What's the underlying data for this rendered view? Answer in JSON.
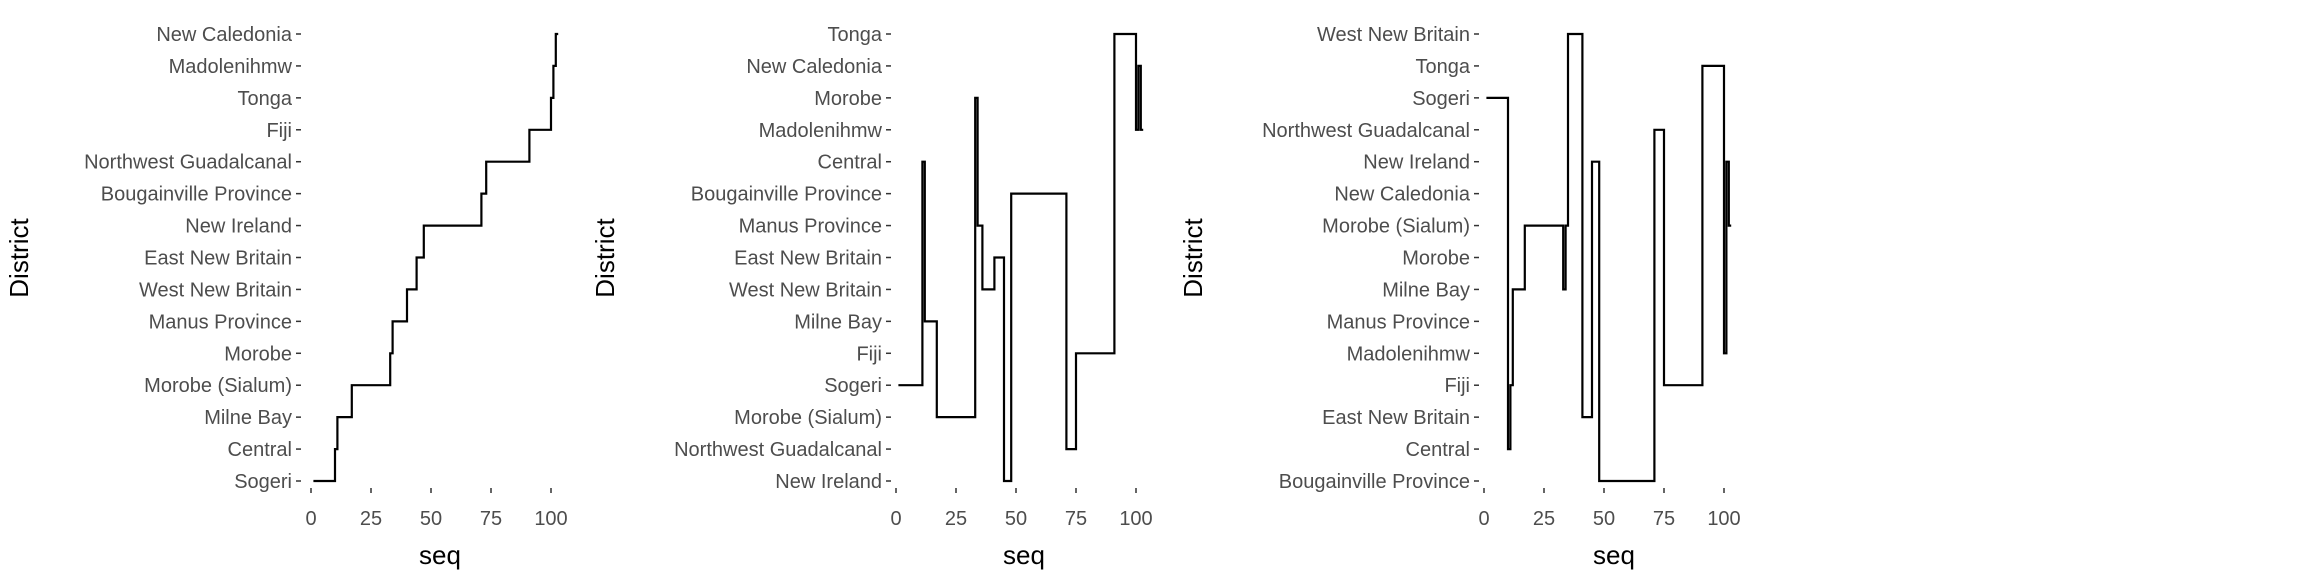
{
  "chart_data": [
    {
      "type": "line",
      "xlabel": "seq",
      "ylabel": "District",
      "xlim": [
        -2,
        106
      ],
      "x_ticks": [
        0,
        50,
        100
      ],
      "x_tick_labels": [
        "0",
        "25",
        "50",
        "75",
        "100"
      ],
      "x_ticks_all": [
        0,
        25,
        50,
        75,
        100
      ],
      "grid": false,
      "y_categories": [
        "Sogeri",
        "Central",
        "Milne Bay",
        "Morobe (Sialum)",
        "Morobe",
        "Manus Province",
        "West New Britain",
        "East New Britain",
        "New Ireland",
        "Bougainville Province",
        "Northwest Guadalcanal",
        "Fiji",
        "Tonga",
        "Madolenihmw",
        "New Caledonia"
      ],
      "series": [
        {
          "x": [
            1,
            10,
            10,
            11,
            11,
            12,
            12,
            13,
            13,
            17,
            17,
            18,
            18,
            33,
            33,
            34,
            34,
            35,
            35,
            36,
            36,
            40,
            40,
            41,
            41,
            44,
            44,
            45,
            45,
            47,
            47,
            48,
            48,
            71,
            71,
            73,
            73,
            75,
            75,
            91,
            91,
            100,
            100,
            101,
            101,
            102,
            102,
            103
          ],
          "y": [
            "Sogeri",
            "Sogeri",
            "Central",
            "Central",
            "Milne Bay",
            "Milne Bay",
            "Milne Bay",
            "Milne Bay",
            "Milne Bay",
            "Milne Bay",
            "Morobe (Sialum)",
            "Morobe (Sialum)",
            "Morobe (Sialum)",
            "Morobe (Sialum)",
            "Morobe",
            "Morobe",
            "Manus Province",
            "Manus Province",
            "Manus Province",
            "Manus Province",
            "Manus Province",
            "Manus Province",
            "West New Britain",
            "West New Britain",
            "West New Britain",
            "West New Britain",
            "East New Britain",
            "East New Britain",
            "East New Britain",
            "East New Britain",
            "New Ireland",
            "New Ireland",
            "New Ireland",
            "New Ireland",
            "Bougainville Province",
            "Bougainville Province",
            "Northwest Guadalcanal",
            "Northwest Guadalcanal",
            "Northwest Guadalcanal",
            "Northwest Guadalcanal",
            "Fiji",
            "Fiji",
            "Tonga",
            "Tonga",
            "Madolenihmw",
            "Madolenihmw",
            "New Caledonia",
            "New Caledonia"
          ]
        }
      ]
    },
    {
      "type": "line",
      "xlabel": "seq",
      "ylabel": "District",
      "xlim": [
        -2,
        106
      ],
      "x_tick_labels": [
        "0",
        "25",
        "50",
        "75",
        "100"
      ],
      "x_ticks_all": [
        0,
        25,
        50,
        75,
        100
      ],
      "grid": false,
      "y_categories": [
        "New Ireland",
        "Northwest Guadalcanal",
        "Morobe (Sialum)",
        "Sogeri",
        "Fiji",
        "Milne Bay",
        "West New Britain",
        "East New Britain",
        "Manus Province",
        "Bougainville Province",
        "Central",
        "Madolenihmw",
        "Morobe",
        "New Caledonia",
        "Tonga"
      ],
      "series": [
        {
          "x": [
            1,
            11,
            11,
            12,
            12,
            13,
            13,
            17,
            17,
            18,
            18,
            33,
            33,
            34,
            34,
            35,
            35,
            36,
            36,
            40,
            40,
            41,
            41,
            44,
            44,
            45,
            45,
            47,
            47,
            48,
            48,
            71,
            71,
            73,
            73,
            75,
            75,
            91,
            91,
            100,
            100,
            101,
            101,
            102,
            102,
            103
          ],
          "y": [
            "Sogeri",
            "Sogeri",
            "Central",
            "Central",
            "Milne Bay",
            "Milne Bay",
            "Milne Bay",
            "Milne Bay",
            "Morobe (Sialum)",
            "Morobe (Sialum)",
            "Morobe (Sialum)",
            "Morobe (Sialum)",
            "Morobe",
            "Morobe",
            "Manus Province",
            "Manus Province",
            "Manus Province",
            "Manus Province",
            "West New Britain",
            "West New Britain",
            "West New Britain",
            "West New Britain",
            "East New Britain",
            "East New Britain",
            "East New Britain",
            "East New Britain",
            "New Ireland",
            "New Ireland",
            "New Ireland",
            "New Ireland",
            "Bougainville Province",
            "Bougainville Province",
            "Northwest Guadalcanal",
            "Northwest Guadalcanal",
            "Northwest Guadalcanal",
            "Northwest Guadalcanal",
            "Fiji",
            "Fiji",
            "Tonga",
            "Tonga",
            "Madolenihmw",
            "Madolenihmw",
            "New Caledonia",
            "New Caledonia",
            "Madolenihmw",
            "Madolenihmw"
          ]
        }
      ]
    },
    {
      "type": "line",
      "xlabel": "seq",
      "ylabel": "District",
      "xlim": [
        -2,
        106
      ],
      "x_tick_labels": [
        "0",
        "25",
        "50",
        "75",
        "100"
      ],
      "x_ticks_all": [
        0,
        25,
        50,
        75,
        100
      ],
      "grid": false,
      "y_categories": [
        "Bougainville Province",
        "Central",
        "East New Britain",
        "Fiji",
        "Madolenihmw",
        "Manus Province",
        "Milne Bay",
        "Morobe",
        "Morobe (Sialum)",
        "New Caledonia",
        "New Ireland",
        "Northwest Guadalcanal",
        "Sogeri",
        "Tonga",
        "West New Britain"
      ],
      "series": [
        {
          "x": [
            1,
            10,
            10,
            11,
            11,
            12,
            12,
            13,
            13,
            17,
            17,
            18,
            18,
            33,
            33,
            34,
            34,
            35,
            35,
            36,
            36,
            40,
            40,
            41,
            41,
            44,
            44,
            45,
            45,
            47,
            47,
            48,
            48,
            71,
            71,
            73,
            73,
            75,
            75,
            91,
            91,
            100,
            100,
            101,
            101,
            102,
            102,
            103
          ],
          "y": [
            "Sogeri",
            "Sogeri",
            "Central",
            "Central",
            "Fiji",
            "Fiji",
            "Milne Bay",
            "Milne Bay",
            "Milne Bay",
            "Milne Bay",
            "Morobe (Sialum)",
            "Morobe (Sialum)",
            "Morobe (Sialum)",
            "Morobe (Sialum)",
            "Milne Bay",
            "Milne Bay",
            "Morobe (Sialum)",
            "Morobe (Sialum)",
            "West New Britain",
            "West New Britain",
            "West New Britain",
            "West New Britain",
            "West New Britain",
            "West New Britain",
            "East New Britain",
            "East New Britain",
            "East New Britain",
            "East New Britain",
            "New Ireland",
            "New Ireland",
            "New Ireland",
            "New Ireland",
            "Bougainville Province",
            "Bougainville Province",
            "Northwest Guadalcanal",
            "Northwest Guadalcanal",
            "Northwest Guadalcanal",
            "Northwest Guadalcanal",
            "Fiji",
            "Fiji",
            "Tonga",
            "Tonga",
            "Madolenihmw",
            "Madolenihmw",
            "New Ireland",
            "New Ireland",
            "Morobe (Sialum)",
            "Morobe (Sialum)"
          ]
        }
      ]
    }
  ]
}
